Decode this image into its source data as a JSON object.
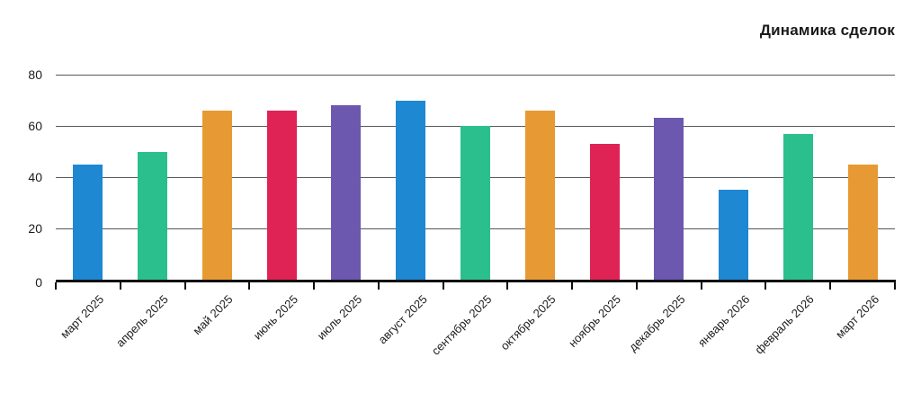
{
  "title": "Динамика сделок",
  "chart_data": {
    "type": "bar",
    "title": "Динамика сделок",
    "xlabel": "",
    "ylabel": "",
    "categories": [
      "март 2025",
      "апрель 2025",
      "май 2025",
      "июнь 2025",
      "июль 2025",
      "август 2025",
      "сентябрь 2025",
      "октябрь 2025",
      "ноябрь 2025",
      "декабрь 2025",
      "январь 2026",
      "февраль 2026",
      "март 2026"
    ],
    "values": [
      45,
      50,
      66,
      66,
      68,
      70,
      60,
      66,
      53,
      63,
      35,
      57,
      45
    ],
    "ylim": [
      0,
      80
    ],
    "yticks": [
      0,
      20,
      40,
      60,
      80
    ],
    "grid": true,
    "legend": false,
    "bar_color_cycle": [
      "#1e88d2",
      "#2cbf8e",
      "#e79a33",
      "#df2355",
      "#6c58ae"
    ]
  },
  "colors": {
    "background": "#ffffff",
    "gridline": "#55585c",
    "axis": "#0d0d0d",
    "tick_label": "#1c1c1c",
    "title": "#1a1a1a"
  }
}
